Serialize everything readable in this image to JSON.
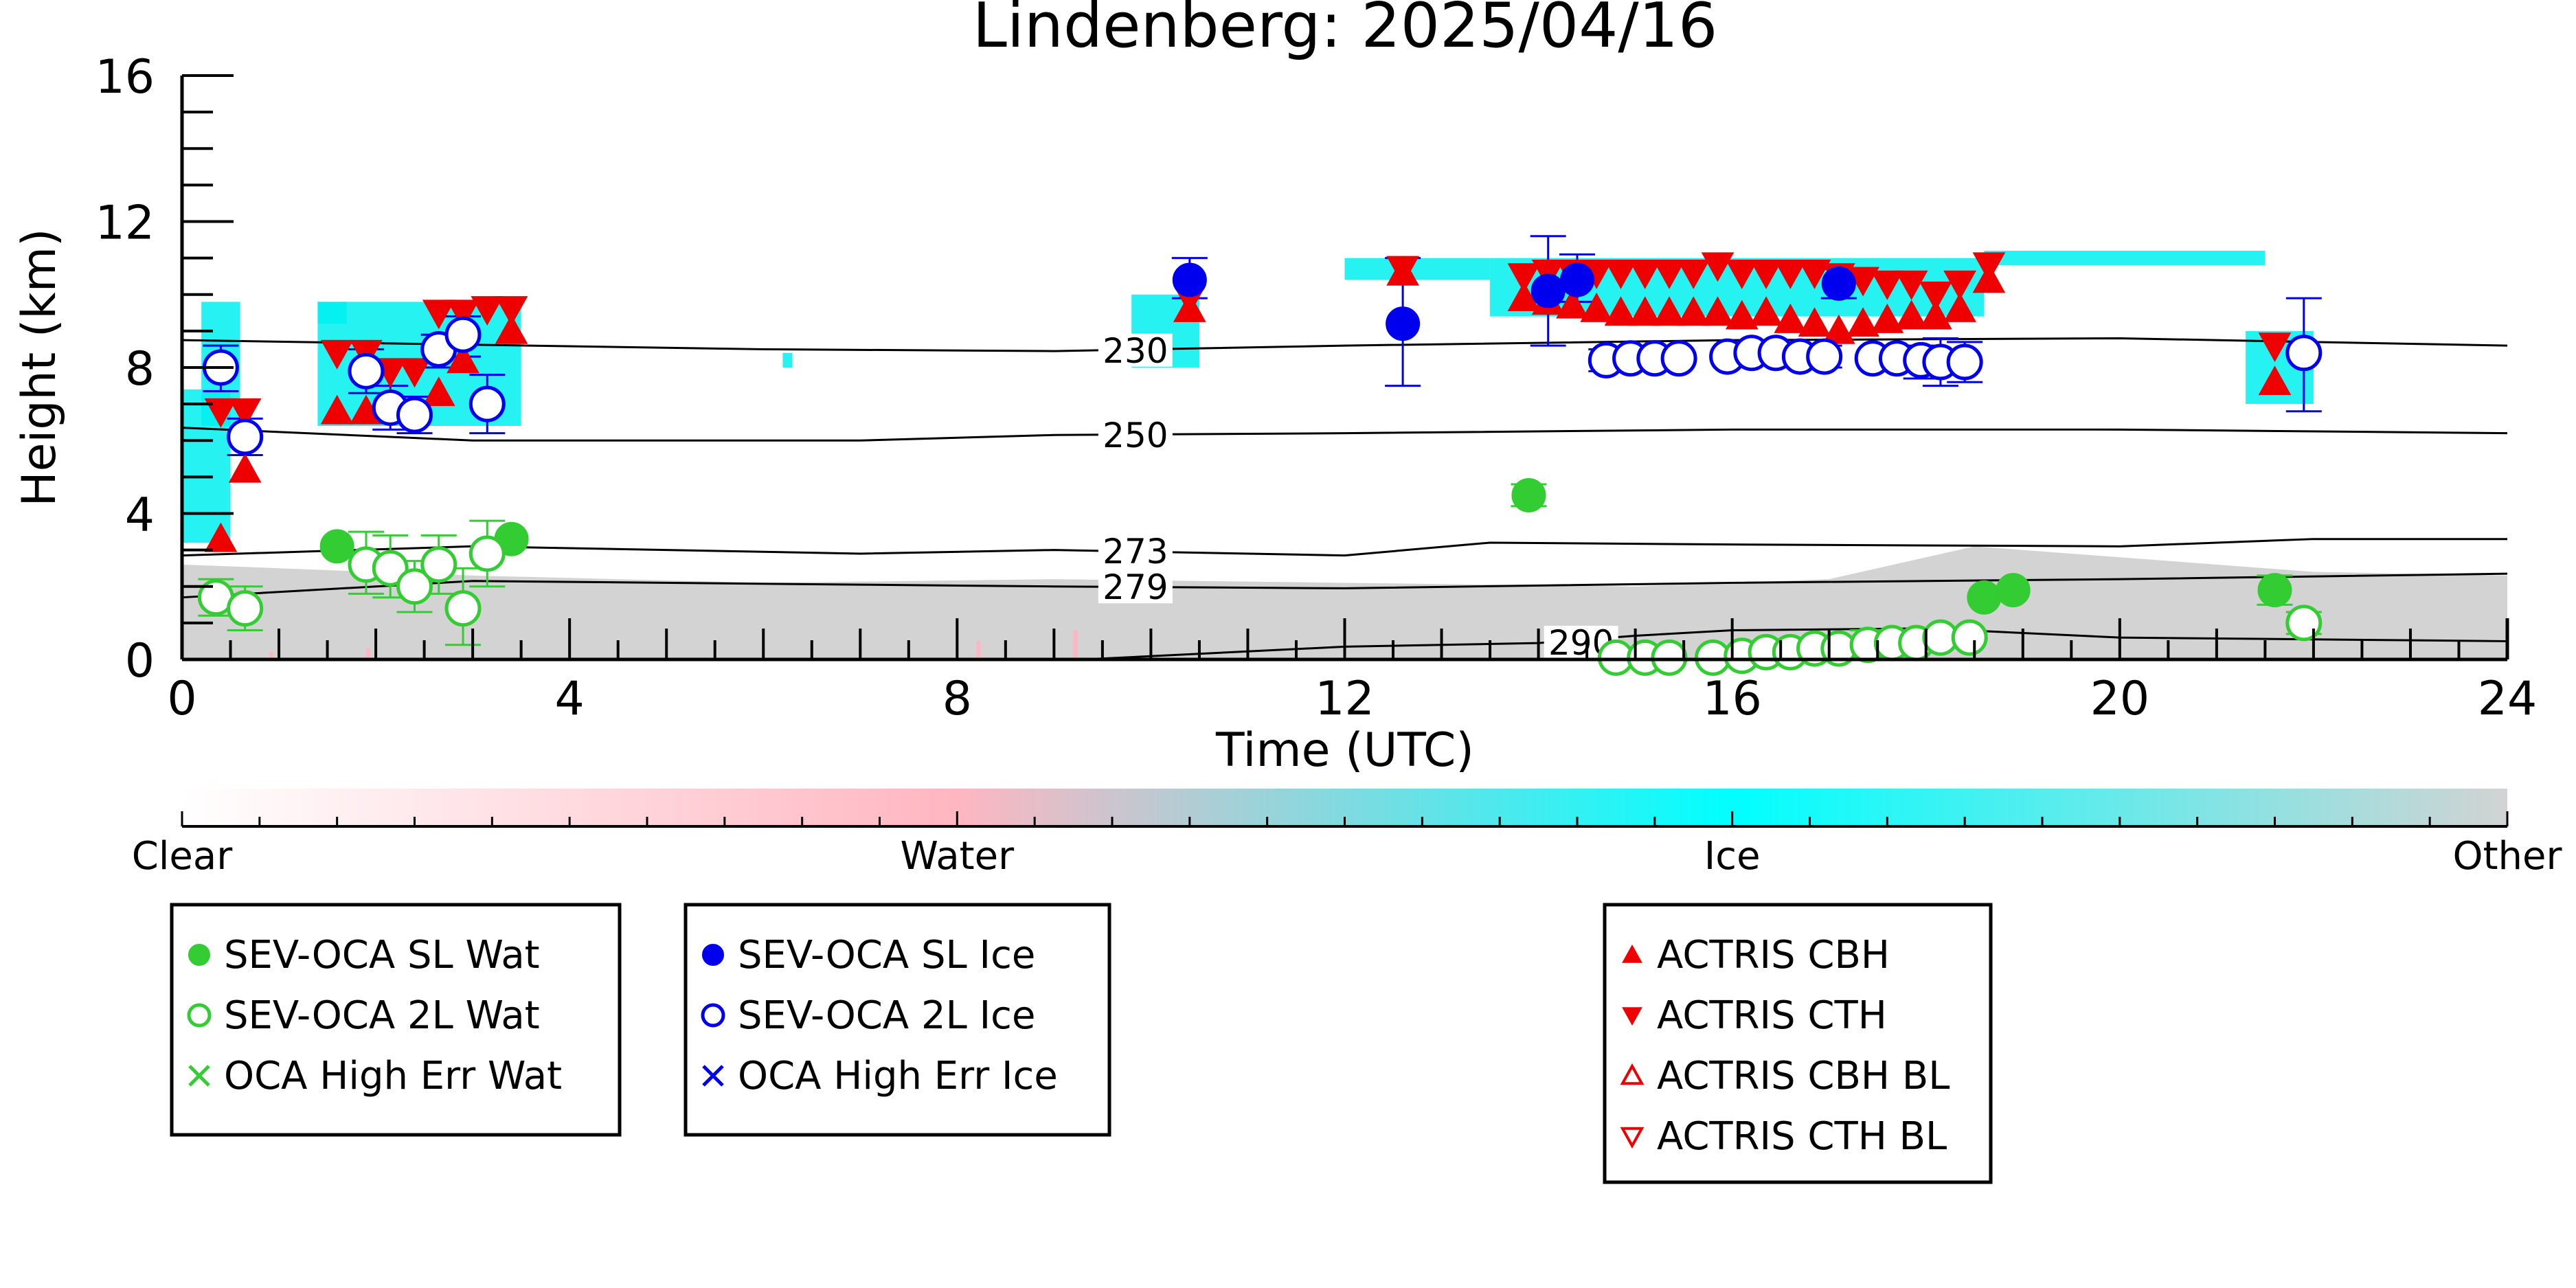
{
  "chart_data": {
    "type": "scatter",
    "title": "Lindenberg: 2025/04/16",
    "xlabel": "Time (UTC)",
    "ylabel": "Height (km)",
    "xlim": [
      0,
      24
    ],
    "ylim": [
      0,
      16
    ],
    "xticks": [
      0,
      4,
      8,
      12,
      16,
      20,
      24
    ],
    "yticks": [
      0,
      4,
      8,
      12,
      16
    ],
    "colorbar": {
      "labels": [
        "Clear",
        "Water",
        "Ice",
        "Other"
      ],
      "stops": [
        "#ffffff",
        "#ffb6c1",
        "#00ffff",
        "#d3d3d3"
      ]
    },
    "background": {
      "water_color": "#ffb6c1",
      "ice_color": "#00f0f0",
      "other_color": "#d3d3d3",
      "other_layer": [
        [
          0,
          2.6
        ],
        [
          1,
          2.5
        ],
        [
          3,
          2.3
        ],
        [
          6,
          2.1
        ],
        [
          9,
          2.2
        ],
        [
          12,
          2.1
        ],
        [
          15,
          2.0
        ],
        [
          17,
          2.2
        ],
        [
          18.5,
          3.1
        ],
        [
          20,
          2.8
        ],
        [
          22,
          2.4
        ],
        [
          24,
          2.3
        ]
      ],
      "ice_regions": [
        {
          "x": [
            0.0,
            0.5
          ],
          "y": [
            3.2,
            7.4
          ]
        },
        {
          "x": [
            0.2,
            0.6
          ],
          "y": [
            6.4,
            9.8
          ]
        },
        {
          "x": [
            1.4,
            3.5
          ],
          "y": [
            6.4,
            9.8
          ]
        },
        {
          "x": [
            1.4,
            1.7
          ],
          "y": [
            9.2,
            9.8
          ]
        },
        {
          "x": [
            6.2,
            6.3
          ],
          "y": [
            8.0,
            8.4
          ]
        },
        {
          "x": [
            9.8,
            10.5
          ],
          "y": [
            8.0,
            10.0
          ]
        },
        {
          "x": [
            12.0,
            13.5
          ],
          "y": [
            10.4,
            11.0
          ]
        },
        {
          "x": [
            13.5,
            18.6
          ],
          "y": [
            9.4,
            11.0
          ]
        },
        {
          "x": [
            18.6,
            21.5
          ],
          "y": [
            10.8,
            11.2
          ]
        },
        {
          "x": [
            21.3,
            22.0
          ],
          "y": [
            7.0,
            9.0
          ]
        }
      ]
    },
    "isotherms": [
      {
        "label": "230",
        "label_x": 9.5,
        "points": [
          [
            0,
            8.75
          ],
          [
            6,
            8.5
          ],
          [
            9,
            8.45
          ],
          [
            12,
            8.6
          ],
          [
            16,
            8.75
          ],
          [
            20,
            8.8
          ],
          [
            24,
            8.6
          ]
        ]
      },
      {
        "label": "250",
        "label_x": 9.5,
        "points": [
          [
            0,
            6.35
          ],
          [
            3,
            6.0
          ],
          [
            7,
            6.0
          ],
          [
            9,
            6.15
          ],
          [
            12,
            6.2
          ],
          [
            16,
            6.3
          ],
          [
            20,
            6.3
          ],
          [
            24,
            6.2
          ]
        ]
      },
      {
        "label": "273",
        "label_x": 9.5,
        "points": [
          [
            0,
            2.85
          ],
          [
            3,
            3.1
          ],
          [
            7,
            2.9
          ],
          [
            9,
            3.0
          ],
          [
            12,
            2.85
          ],
          [
            13.5,
            3.2
          ],
          [
            16,
            3.15
          ],
          [
            20,
            3.1
          ],
          [
            22,
            3.3
          ],
          [
            24,
            3.3
          ]
        ]
      },
      {
        "label": "279",
        "label_x": 9.5,
        "points": [
          [
            0,
            1.7
          ],
          [
            3,
            2.15
          ],
          [
            7,
            2.05
          ],
          [
            9,
            2.0
          ],
          [
            12,
            1.95
          ],
          [
            16,
            2.1
          ],
          [
            20,
            2.2
          ],
          [
            24,
            2.35
          ]
        ]
      },
      {
        "label": "290",
        "label_x": 14.1,
        "points": [
          [
            9.3,
            0.0
          ],
          [
            12,
            0.35
          ],
          [
            14,
            0.45
          ],
          [
            15,
            0.65
          ],
          [
            16,
            0.8
          ],
          [
            18,
            0.85
          ],
          [
            20,
            0.6
          ],
          [
            24,
            0.5
          ]
        ]
      }
    ],
    "series": [
      {
        "name": "SEV-OCA SL Wat",
        "marker": "circle",
        "filled": true,
        "color": "#33cc33",
        "points": [
          {
            "x": 1.6,
            "y": 3.1
          },
          {
            "x": 3.4,
            "y": 3.3
          },
          {
            "x": 13.9,
            "y": 4.5
          },
          {
            "x": 18.6,
            "y": 1.7
          },
          {
            "x": 18.9,
            "y": 1.9
          },
          {
            "x": 21.6,
            "y": 1.9
          }
        ]
      },
      {
        "name": "SEV-OCA 2L Wat",
        "marker": "circle",
        "filled": false,
        "color": "#33cc33",
        "points": [
          {
            "x": 0.35,
            "y": 1.7
          },
          {
            "x": 0.65,
            "y": 1.4
          },
          {
            "x": 1.9,
            "y": 2.6
          },
          {
            "x": 2.15,
            "y": 2.5
          },
          {
            "x": 2.4,
            "y": 2.0
          },
          {
            "x": 2.65,
            "y": 2.6
          },
          {
            "x": 2.9,
            "y": 1.4
          },
          {
            "x": 3.15,
            "y": 2.9
          },
          {
            "x": 14.8,
            "y": 0.05
          },
          {
            "x": 15.1,
            "y": 0.05
          },
          {
            "x": 15.35,
            "y": 0.05
          },
          {
            "x": 15.8,
            "y": 0.05
          },
          {
            "x": 16.1,
            "y": 0.1
          },
          {
            "x": 16.35,
            "y": 0.2
          },
          {
            "x": 16.6,
            "y": 0.2
          },
          {
            "x": 16.85,
            "y": 0.3
          },
          {
            "x": 17.1,
            "y": 0.3
          },
          {
            "x": 17.4,
            "y": 0.4
          },
          {
            "x": 17.65,
            "y": 0.45
          },
          {
            "x": 17.9,
            "y": 0.45
          },
          {
            "x": 18.15,
            "y": 0.6
          },
          {
            "x": 18.45,
            "y": 0.6
          },
          {
            "x": 21.9,
            "y": 1.0
          }
        ]
      },
      {
        "name": "OCA High Err Wat",
        "marker": "x",
        "filled": false,
        "color": "#33cc33",
        "points": []
      },
      {
        "name": "SEV-OCA SL Ice",
        "marker": "circle",
        "filled": true,
        "color": "#0000ee",
        "points": [
          {
            "x": 10.4,
            "y": 10.4
          },
          {
            "x": 12.6,
            "y": 9.2
          },
          {
            "x": 14.1,
            "y": 10.1
          },
          {
            "x": 14.4,
            "y": 10.4
          },
          {
            "x": 17.1,
            "y": 10.3
          }
        ]
      },
      {
        "name": "SEV-OCA 2L Ice",
        "marker": "circle",
        "filled": false,
        "color": "#0000ee",
        "points": [
          {
            "x": 0.4,
            "y": 8.0
          },
          {
            "x": 0.65,
            "y": 6.1
          },
          {
            "x": 1.9,
            "y": 7.9
          },
          {
            "x": 2.15,
            "y": 6.9
          },
          {
            "x": 2.4,
            "y": 6.7
          },
          {
            "x": 2.65,
            "y": 8.5
          },
          {
            "x": 2.9,
            "y": 8.9
          },
          {
            "x": 3.15,
            "y": 7.0
          },
          {
            "x": 14.7,
            "y": 8.2
          },
          {
            "x": 14.95,
            "y": 8.25
          },
          {
            "x": 15.2,
            "y": 8.25
          },
          {
            "x": 15.45,
            "y": 8.25
          },
          {
            "x": 15.95,
            "y": 8.3
          },
          {
            "x": 16.2,
            "y": 8.4
          },
          {
            "x": 16.45,
            "y": 8.4
          },
          {
            "x": 16.7,
            "y": 8.3
          },
          {
            "x": 16.95,
            "y": 8.3
          },
          {
            "x": 17.45,
            "y": 8.25
          },
          {
            "x": 17.7,
            "y": 8.25
          },
          {
            "x": 17.95,
            "y": 8.2
          },
          {
            "x": 18.15,
            "y": 8.15
          },
          {
            "x": 18.4,
            "y": 8.15
          },
          {
            "x": 21.9,
            "y": 8.4
          }
        ]
      },
      {
        "name": "OCA High Err Ice",
        "marker": "x",
        "filled": false,
        "color": "#0000ee",
        "points": []
      },
      {
        "name": "ACTRIS CBH",
        "marker": "triangle-up",
        "filled": true,
        "color": "#ee0000",
        "points": [
          {
            "x": 0.4,
            "y": 3.3
          },
          {
            "x": 0.65,
            "y": 5.2
          },
          {
            "x": 1.6,
            "y": 6.8
          },
          {
            "x": 1.9,
            "y": 6.8
          },
          {
            "x": 2.15,
            "y": 7.0
          },
          {
            "x": 2.65,
            "y": 7.3
          },
          {
            "x": 2.9,
            "y": 8.2
          },
          {
            "x": 3.4,
            "y": 9.0
          },
          {
            "x": 10.4,
            "y": 9.6
          },
          {
            "x": 12.6,
            "y": 10.6
          },
          {
            "x": 13.85,
            "y": 9.9
          },
          {
            "x": 14.1,
            "y": 9.8
          },
          {
            "x": 14.35,
            "y": 9.7
          },
          {
            "x": 14.6,
            "y": 9.6
          },
          {
            "x": 14.85,
            "y": 9.5
          },
          {
            "x": 15.1,
            "y": 9.5
          },
          {
            "x": 15.35,
            "y": 9.5
          },
          {
            "x": 15.6,
            "y": 9.5
          },
          {
            "x": 15.85,
            "y": 9.5
          },
          {
            "x": 16.1,
            "y": 9.4
          },
          {
            "x": 16.35,
            "y": 9.5
          },
          {
            "x": 16.6,
            "y": 9.3
          },
          {
            "x": 16.85,
            "y": 9.2
          },
          {
            "x": 17.1,
            "y": 9.0
          },
          {
            "x": 17.35,
            "y": 9.2
          },
          {
            "x": 17.6,
            "y": 9.3
          },
          {
            "x": 17.85,
            "y": 9.4
          },
          {
            "x": 18.1,
            "y": 9.4
          },
          {
            "x": 18.35,
            "y": 9.6
          },
          {
            "x": 18.65,
            "y": 10.4
          },
          {
            "x": 21.6,
            "y": 7.6
          }
        ]
      },
      {
        "name": "ACTRIS CTH",
        "marker": "triangle-down",
        "filled": true,
        "color": "#ee0000",
        "points": [
          {
            "x": 0.4,
            "y": 6.8
          },
          {
            "x": 0.65,
            "y": 6.8
          },
          {
            "x": 1.6,
            "y": 8.4
          },
          {
            "x": 1.9,
            "y": 8.4
          },
          {
            "x": 2.15,
            "y": 7.9
          },
          {
            "x": 2.4,
            "y": 7.9
          },
          {
            "x": 2.65,
            "y": 9.5
          },
          {
            "x": 2.9,
            "y": 9.5
          },
          {
            "x": 3.15,
            "y": 9.6
          },
          {
            "x": 3.4,
            "y": 9.6
          },
          {
            "x": 10.4,
            "y": 9.9
          },
          {
            "x": 12.6,
            "y": 10.7
          },
          {
            "x": 13.85,
            "y": 10.5
          },
          {
            "x": 14.1,
            "y": 10.6
          },
          {
            "x": 14.35,
            "y": 10.6
          },
          {
            "x": 14.6,
            "y": 10.6
          },
          {
            "x": 14.85,
            "y": 10.6
          },
          {
            "x": 15.1,
            "y": 10.6
          },
          {
            "x": 15.35,
            "y": 10.6
          },
          {
            "x": 15.6,
            "y": 10.6
          },
          {
            "x": 15.85,
            "y": 10.8
          },
          {
            "x": 16.1,
            "y": 10.6
          },
          {
            "x": 16.35,
            "y": 10.6
          },
          {
            "x": 16.6,
            "y": 10.6
          },
          {
            "x": 16.85,
            "y": 10.6
          },
          {
            "x": 17.1,
            "y": 10.5
          },
          {
            "x": 17.35,
            "y": 10.4
          },
          {
            "x": 17.6,
            "y": 10.3
          },
          {
            "x": 17.85,
            "y": 10.3
          },
          {
            "x": 18.1,
            "y": 10.0
          },
          {
            "x": 18.35,
            "y": 10.3
          },
          {
            "x": 18.65,
            "y": 10.8
          },
          {
            "x": 21.6,
            "y": 8.6
          }
        ]
      },
      {
        "name": "ACTRIS CBH BL",
        "marker": "triangle-up",
        "filled": false,
        "color": "#ee0000",
        "points": []
      },
      {
        "name": "ACTRIS CTH BL",
        "marker": "triangle-down",
        "filled": false,
        "color": "#ee0000",
        "points": []
      }
    ],
    "error_bars": [
      {
        "x": 0.4,
        "y0": 7.35,
        "y1": 8.6,
        "color": "#0000ee"
      },
      {
        "x": 0.65,
        "y0": 5.6,
        "y1": 6.6,
        "color": "#0000ee"
      },
      {
        "x": 1.9,
        "y0": 7.3,
        "y1": 8.5,
        "color": "#0000ee"
      },
      {
        "x": 2.15,
        "y0": 6.3,
        "y1": 7.5,
        "color": "#0000ee"
      },
      {
        "x": 2.4,
        "y0": 6.2,
        "y1": 7.2,
        "color": "#0000ee"
      },
      {
        "x": 2.65,
        "y0": 8.0,
        "y1": 8.9,
        "color": "#0000ee"
      },
      {
        "x": 2.9,
        "y0": 8.3,
        "y1": 9.4,
        "color": "#0000ee"
      },
      {
        "x": 3.15,
        "y0": 6.2,
        "y1": 7.8,
        "color": "#0000ee"
      },
      {
        "x": 10.4,
        "y0": 9.9,
        "y1": 11.0,
        "color": "#0000ee"
      },
      {
        "x": 12.6,
        "y0": 7.5,
        "y1": 11.0,
        "color": "#0000ee"
      },
      {
        "x": 14.1,
        "y0": 8.6,
        "y1": 11.6,
        "color": "#0000ee"
      },
      {
        "x": 14.4,
        "y0": 9.8,
        "y1": 11.1,
        "color": "#0000ee"
      },
      {
        "x": 14.7,
        "y0": 7.9,
        "y1": 8.5,
        "color": "#0000ee"
      },
      {
        "x": 14.95,
        "y0": 8.0,
        "y1": 8.5,
        "color": "#0000ee"
      },
      {
        "x": 16.95,
        "y0": 8.0,
        "y1": 8.6,
        "color": "#0000ee"
      },
      {
        "x": 17.1,
        "y0": 9.9,
        "y1": 10.7,
        "color": "#0000ee"
      },
      {
        "x": 17.95,
        "y0": 7.7,
        "y1": 8.6,
        "color": "#0000ee"
      },
      {
        "x": 18.15,
        "y0": 7.5,
        "y1": 8.8,
        "color": "#0000ee"
      },
      {
        "x": 18.4,
        "y0": 7.6,
        "y1": 8.7,
        "color": "#0000ee"
      },
      {
        "x": 21.9,
        "y0": 6.8,
        "y1": 9.9,
        "color": "#0000ee"
      },
      {
        "x": 0.35,
        "y0": 1.2,
        "y1": 2.2,
        "color": "#33cc33"
      },
      {
        "x": 0.65,
        "y0": 0.8,
        "y1": 2.0,
        "color": "#33cc33"
      },
      {
        "x": 1.9,
        "y0": 1.8,
        "y1": 3.5,
        "color": "#33cc33"
      },
      {
        "x": 2.15,
        "y0": 1.7,
        "y1": 3.4,
        "color": "#33cc33"
      },
      {
        "x": 2.4,
        "y0": 1.3,
        "y1": 2.7,
        "color": "#33cc33"
      },
      {
        "x": 2.65,
        "y0": 1.8,
        "y1": 3.4,
        "color": "#33cc33"
      },
      {
        "x": 2.9,
        "y0": 0.4,
        "y1": 2.5,
        "color": "#33cc33"
      },
      {
        "x": 3.15,
        "y0": 2.0,
        "y1": 3.8,
        "color": "#33cc33"
      },
      {
        "x": 13.9,
        "y0": 4.2,
        "y1": 4.8,
        "color": "#33cc33"
      },
      {
        "x": 17.4,
        "y0": 0.1,
        "y1": 0.8,
        "color": "#33cc33"
      },
      {
        "x": 17.65,
        "y0": 0.2,
        "y1": 0.75,
        "color": "#33cc33"
      },
      {
        "x": 21.6,
        "y0": 1.5,
        "y1": 2.3,
        "color": "#33cc33"
      },
      {
        "x": 21.9,
        "y0": 0.7,
        "y1": 1.3,
        "color": "#33cc33"
      }
    ]
  }
}
